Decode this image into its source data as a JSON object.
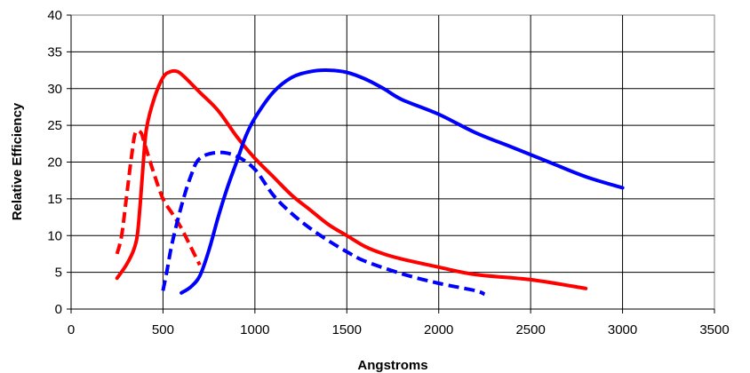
{
  "chart_data": {
    "type": "line",
    "title": "",
    "xlabel": "Angstroms",
    "ylabel": "Relative Efficiency",
    "xlim": [
      0,
      3500
    ],
    "ylim": [
      0,
      40
    ],
    "xticks": [
      0,
      500,
      1000,
      1500,
      2000,
      2500,
      3000,
      3500
    ],
    "yticks": [
      0,
      5,
      10,
      15,
      20,
      25,
      30,
      35,
      40
    ],
    "grid": true,
    "legend": "none",
    "series": [
      {
        "color": "#ff0000",
        "style": "solid",
        "points": [
          [
            250,
            4.2
          ],
          [
            300,
            6.0
          ],
          [
            340,
            8.0
          ],
          [
            360,
            10.0
          ],
          [
            375,
            14.0
          ],
          [
            390,
            19.0
          ],
          [
            410,
            24.5
          ],
          [
            450,
            28.5
          ],
          [
            500,
            31.5
          ],
          [
            540,
            32.3
          ],
          [
            580,
            32.3
          ],
          [
            620,
            31.5
          ],
          [
            700,
            29.5
          ],
          [
            800,
            27.0
          ],
          [
            900,
            23.5
          ],
          [
            1000,
            20.5
          ],
          [
            1100,
            18.0
          ],
          [
            1200,
            15.5
          ],
          [
            1300,
            13.5
          ],
          [
            1400,
            11.5
          ],
          [
            1500,
            10.0
          ],
          [
            1600,
            8.5
          ],
          [
            1700,
            7.5
          ],
          [
            1800,
            6.8
          ],
          [
            2000,
            5.7
          ],
          [
            2200,
            4.7
          ],
          [
            2500,
            4.0
          ],
          [
            2800,
            2.8
          ]
        ]
      },
      {
        "color": "#ff0000",
        "style": "dashed",
        "points": [
          [
            250,
            7.5
          ],
          [
            275,
            10.0
          ],
          [
            300,
            15.0
          ],
          [
            330,
            21.0
          ],
          [
            350,
            24.0
          ],
          [
            380,
            24.0
          ],
          [
            400,
            22.5
          ],
          [
            450,
            18.5
          ],
          [
            500,
            15.0
          ],
          [
            550,
            13.0
          ],
          [
            600,
            11.0
          ],
          [
            650,
            8.5
          ],
          [
            700,
            6.0
          ]
        ]
      },
      {
        "color": "#0000ff",
        "style": "solid",
        "points": [
          [
            600,
            2.2
          ],
          [
            650,
            3.0
          ],
          [
            700,
            4.5
          ],
          [
            750,
            8.0
          ],
          [
            800,
            12.5
          ],
          [
            850,
            16.5
          ],
          [
            900,
            20.0
          ],
          [
            950,
            23.5
          ],
          [
            1000,
            26.0
          ],
          [
            1100,
            29.5
          ],
          [
            1200,
            31.5
          ],
          [
            1300,
            32.3
          ],
          [
            1400,
            32.5
          ],
          [
            1500,
            32.2
          ],
          [
            1600,
            31.3
          ],
          [
            1700,
            30.0
          ],
          [
            1800,
            28.5
          ],
          [
            2000,
            26.5
          ],
          [
            2200,
            24.0
          ],
          [
            2400,
            22.0
          ],
          [
            2600,
            20.0
          ],
          [
            2800,
            18.0
          ],
          [
            3000,
            16.5
          ]
        ]
      },
      {
        "color": "#0000ff",
        "style": "dashed",
        "points": [
          [
            500,
            2.5
          ],
          [
            520,
            5.0
          ],
          [
            550,
            9.0
          ],
          [
            600,
            14.0
          ],
          [
            650,
            18.0
          ],
          [
            700,
            20.5
          ],
          [
            800,
            21.3
          ],
          [
            900,
            20.8
          ],
          [
            1000,
            19.0
          ],
          [
            1100,
            15.5
          ],
          [
            1200,
            13.0
          ],
          [
            1300,
            11.0
          ],
          [
            1400,
            9.3
          ],
          [
            1500,
            7.8
          ],
          [
            1600,
            6.5
          ],
          [
            1800,
            4.8
          ],
          [
            2000,
            3.5
          ],
          [
            2200,
            2.5
          ],
          [
            2250,
            2.0
          ]
        ]
      }
    ]
  }
}
